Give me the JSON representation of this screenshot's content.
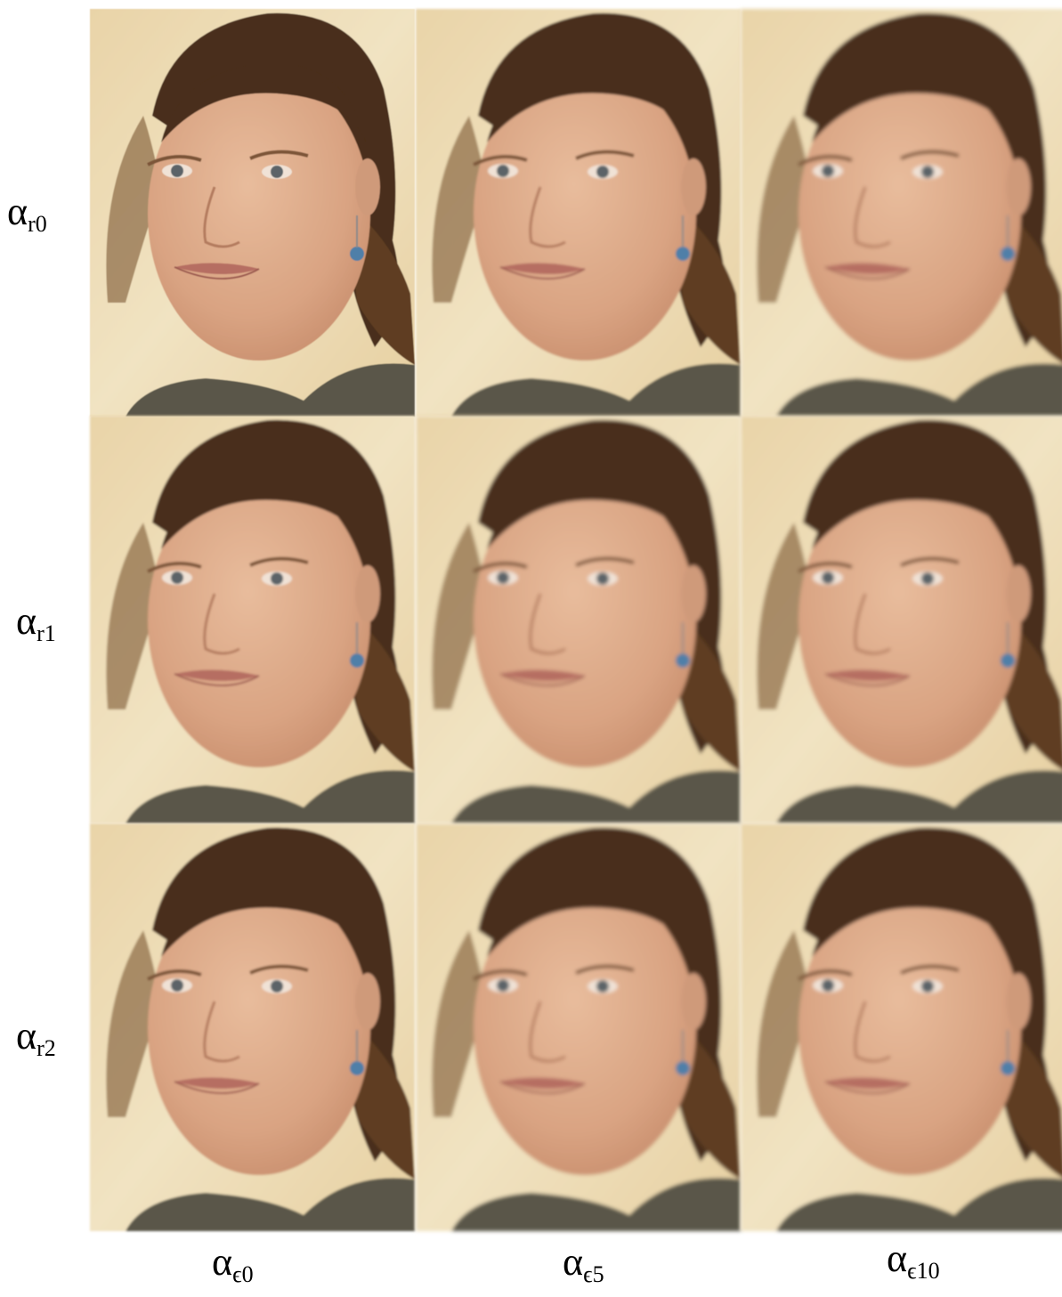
{
  "row_labels": [
    {
      "symbol": "α",
      "subscript": "r0"
    },
    {
      "symbol": "α",
      "subscript": "r1"
    },
    {
      "symbol": "α",
      "subscript": "r2"
    }
  ],
  "column_labels": [
    {
      "symbol": "α",
      "subscript": "ϵ0"
    },
    {
      "symbol": "α",
      "subscript": "ϵ5"
    },
    {
      "symbol": "α",
      "subscript": "ϵ10"
    }
  ]
}
